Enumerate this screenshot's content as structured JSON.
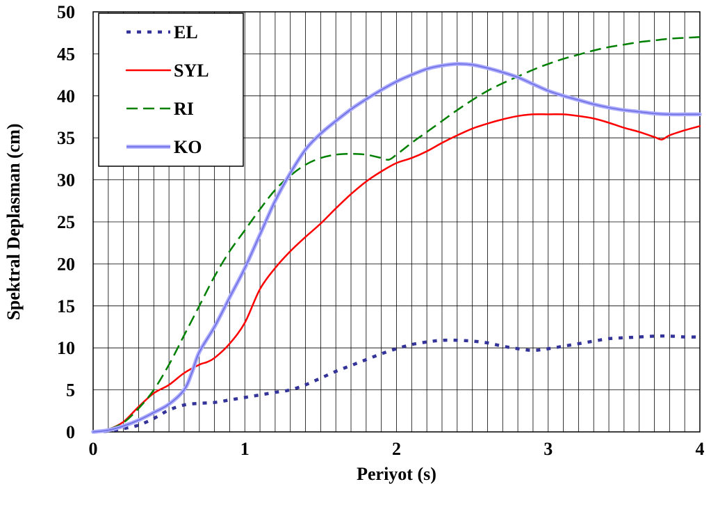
{
  "chart_data": {
    "type": "line",
    "xlabel": "Periyot (s)",
    "ylabel": "Spektral Deplasman (cm)",
    "xlim": [
      0,
      4
    ],
    "ylim": [
      0,
      50
    ],
    "x_ticks": [
      0,
      1,
      2,
      3,
      4
    ],
    "y_ticks": [
      0,
      5,
      10,
      15,
      20,
      25,
      30,
      35,
      40,
      45,
      50
    ],
    "grid": "vertical every 0.1 s, horizontal every 5 cm",
    "legend_position": "top-left",
    "series": [
      {
        "name": "EL",
        "color": "#333399",
        "style": "dotted",
        "points": [
          [
            0,
            0
          ],
          [
            0.1,
            0.1
          ],
          [
            0.2,
            0.4
          ],
          [
            0.3,
            0.8
          ],
          [
            0.4,
            1.6
          ],
          [
            0.5,
            2.6
          ],
          [
            0.6,
            3.2
          ],
          [
            0.7,
            3.4
          ],
          [
            0.8,
            3.5
          ],
          [
            0.9,
            3.8
          ],
          [
            1.0,
            4.1
          ],
          [
            1.1,
            4.4
          ],
          [
            1.2,
            4.7
          ],
          [
            1.3,
            5.0
          ],
          [
            1.4,
            5.6
          ],
          [
            1.5,
            6.4
          ],
          [
            1.6,
            7.2
          ],
          [
            1.7,
            7.9
          ],
          [
            1.8,
            8.6
          ],
          [
            1.9,
            9.3
          ],
          [
            2.0,
            9.9
          ],
          [
            2.1,
            10.4
          ],
          [
            2.2,
            10.7
          ],
          [
            2.3,
            10.9
          ],
          [
            2.4,
            10.9
          ],
          [
            2.5,
            10.8
          ],
          [
            2.6,
            10.6
          ],
          [
            2.7,
            10.2
          ],
          [
            2.8,
            9.9
          ],
          [
            2.9,
            9.7
          ],
          [
            3.0,
            9.9
          ],
          [
            3.1,
            10.2
          ],
          [
            3.2,
            10.5
          ],
          [
            3.3,
            10.8
          ],
          [
            3.4,
            11.1
          ],
          [
            3.5,
            11.2
          ],
          [
            3.6,
            11.3
          ],
          [
            3.7,
            11.4
          ],
          [
            3.8,
            11.4
          ],
          [
            3.9,
            11.3
          ],
          [
            4.0,
            11.3
          ]
        ]
      },
      {
        "name": "SYL",
        "color": "#ff0000",
        "style": "solid",
        "points": [
          [
            0,
            0
          ],
          [
            0.1,
            0.3
          ],
          [
            0.2,
            1.2
          ],
          [
            0.3,
            3.0
          ],
          [
            0.4,
            4.6
          ],
          [
            0.5,
            5.6
          ],
          [
            0.6,
            7.0
          ],
          [
            0.7,
            8.0
          ],
          [
            0.75,
            8.3
          ],
          [
            0.8,
            8.8
          ],
          [
            0.9,
            10.5
          ],
          [
            1.0,
            13.0
          ],
          [
            1.1,
            17.0
          ],
          [
            1.2,
            19.5
          ],
          [
            1.3,
            21.5
          ],
          [
            1.4,
            23.2
          ],
          [
            1.5,
            24.8
          ],
          [
            1.6,
            26.6
          ],
          [
            1.7,
            28.3
          ],
          [
            1.8,
            29.8
          ],
          [
            1.9,
            31.0
          ],
          [
            2.0,
            32.0
          ],
          [
            2.1,
            32.6
          ],
          [
            2.2,
            33.4
          ],
          [
            2.3,
            34.4
          ],
          [
            2.4,
            35.3
          ],
          [
            2.5,
            36.1
          ],
          [
            2.6,
            36.7
          ],
          [
            2.7,
            37.2
          ],
          [
            2.8,
            37.6
          ],
          [
            2.9,
            37.8
          ],
          [
            3.0,
            37.8
          ],
          [
            3.1,
            37.8
          ],
          [
            3.2,
            37.6
          ],
          [
            3.3,
            37.3
          ],
          [
            3.4,
            36.8
          ],
          [
            3.5,
            36.2
          ],
          [
            3.6,
            35.7
          ],
          [
            3.7,
            35.1
          ],
          [
            3.75,
            34.8
          ],
          [
            3.8,
            35.3
          ],
          [
            3.9,
            35.9
          ],
          [
            4.0,
            36.4
          ]
        ]
      },
      {
        "name": "RI",
        "color": "#008000",
        "style": "dashed",
        "points": [
          [
            0,
            0
          ],
          [
            0.1,
            0.3
          ],
          [
            0.2,
            1.1
          ],
          [
            0.3,
            2.8
          ],
          [
            0.4,
            5.0
          ],
          [
            0.5,
            8.0
          ],
          [
            0.6,
            11.5
          ],
          [
            0.7,
            15.0
          ],
          [
            0.8,
            18.5
          ],
          [
            0.9,
            21.5
          ],
          [
            1.0,
            24.0
          ],
          [
            1.1,
            26.5
          ],
          [
            1.2,
            28.8
          ],
          [
            1.3,
            30.5
          ],
          [
            1.4,
            31.8
          ],
          [
            1.5,
            32.6
          ],
          [
            1.6,
            33.0
          ],
          [
            1.7,
            33.1
          ],
          [
            1.8,
            33.0
          ],
          [
            1.9,
            32.6
          ],
          [
            1.95,
            32.4
          ],
          [
            2.0,
            33.0
          ],
          [
            2.1,
            34.4
          ],
          [
            2.2,
            35.7
          ],
          [
            2.3,
            37.0
          ],
          [
            2.4,
            38.3
          ],
          [
            2.5,
            39.5
          ],
          [
            2.6,
            40.6
          ],
          [
            2.7,
            41.5
          ],
          [
            2.8,
            42.3
          ],
          [
            2.9,
            43.1
          ],
          [
            3.0,
            43.8
          ],
          [
            3.1,
            44.4
          ],
          [
            3.2,
            44.9
          ],
          [
            3.3,
            45.4
          ],
          [
            3.4,
            45.8
          ],
          [
            3.5,
            46.1
          ],
          [
            3.6,
            46.4
          ],
          [
            3.7,
            46.6
          ],
          [
            3.8,
            46.8
          ],
          [
            3.9,
            46.9
          ],
          [
            4.0,
            47.0
          ]
        ]
      },
      {
        "name": "KO",
        "color": "#9999ff",
        "style": "solid-thick",
        "points": [
          [
            0,
            0
          ],
          [
            0.1,
            0.2
          ],
          [
            0.2,
            0.7
          ],
          [
            0.3,
            1.4
          ],
          [
            0.4,
            2.3
          ],
          [
            0.5,
            3.3
          ],
          [
            0.6,
            5.0
          ],
          [
            0.65,
            7.0
          ],
          [
            0.7,
            9.5
          ],
          [
            0.8,
            12.5
          ],
          [
            0.9,
            16.0
          ],
          [
            1.0,
            19.5
          ],
          [
            1.1,
            23.5
          ],
          [
            1.2,
            27.5
          ],
          [
            1.3,
            30.8
          ],
          [
            1.4,
            33.6
          ],
          [
            1.5,
            35.5
          ],
          [
            1.6,
            37.0
          ],
          [
            1.7,
            38.4
          ],
          [
            1.8,
            39.6
          ],
          [
            1.9,
            40.7
          ],
          [
            2.0,
            41.7
          ],
          [
            2.1,
            42.5
          ],
          [
            2.2,
            43.2
          ],
          [
            2.3,
            43.6
          ],
          [
            2.4,
            43.8
          ],
          [
            2.5,
            43.7
          ],
          [
            2.6,
            43.3
          ],
          [
            2.7,
            42.8
          ],
          [
            2.8,
            42.2
          ],
          [
            2.9,
            41.4
          ],
          [
            3.0,
            40.6
          ],
          [
            3.1,
            40.0
          ],
          [
            3.2,
            39.5
          ],
          [
            3.3,
            39.0
          ],
          [
            3.4,
            38.6
          ],
          [
            3.5,
            38.3
          ],
          [
            3.6,
            38.1
          ],
          [
            3.7,
            37.9
          ],
          [
            3.8,
            37.8
          ],
          [
            3.9,
            37.8
          ],
          [
            4.0,
            37.8
          ]
        ]
      }
    ]
  }
}
